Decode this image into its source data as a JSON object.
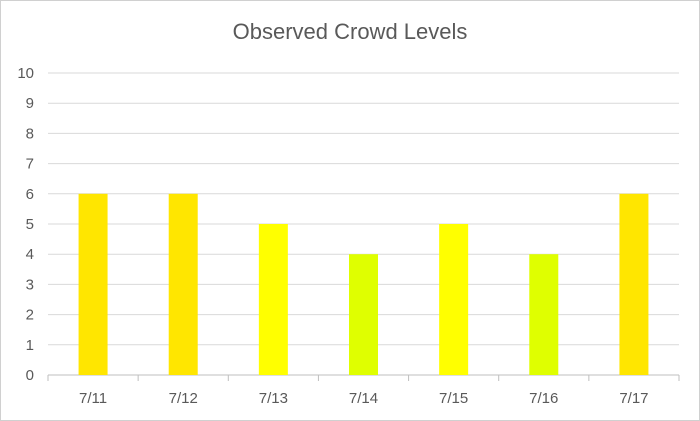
{
  "chart_data": {
    "type": "bar",
    "title": "Observed Crowd Levels",
    "categories": [
      "7/11",
      "7/12",
      "7/13",
      "7/14",
      "7/15",
      "7/16",
      "7/17"
    ],
    "values": [
      6,
      6,
      5,
      4,
      5,
      4,
      6
    ],
    "bar_colors": [
      "#FFE600",
      "#FFE600",
      "#FFFF00",
      "#DFFF00",
      "#FFFF00",
      "#DFFF00",
      "#FFE600"
    ],
    "xlabel": "",
    "ylabel": "",
    "ylim": [
      0,
      10
    ],
    "yticks": [
      "0",
      "1",
      "2",
      "3",
      "4",
      "5",
      "6",
      "7",
      "8",
      "9",
      "10"
    ],
    "grid": true,
    "legend": "none"
  }
}
